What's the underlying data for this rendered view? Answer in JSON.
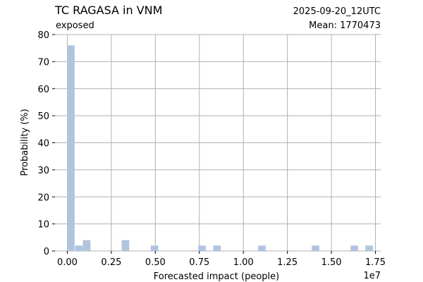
{
  "header": {
    "title": "TC RAGASA in VNM",
    "subtitle": "exposed",
    "timestamp": "2025-09-20_12UTC",
    "mean_label": "Mean: 1770473"
  },
  "colors": {
    "bar": "#b0c4de",
    "timestamp": "#ff0000",
    "grid": "#b0b0b0",
    "text": "#000000"
  },
  "chart_data": {
    "type": "bar",
    "title": "TC RAGASA in VNM",
    "subtitle": "exposed",
    "xlabel": "Forecasted impact (people)",
    "ylabel": "Probability (%)",
    "x_offset_label": "1e7",
    "xlim": [
      -0.07,
      1.78
    ],
    "ylim": [
      0,
      80
    ],
    "x_unit_multiplier": 10000000,
    "xticks": [
      0,
      0.25,
      0.5,
      0.75,
      1.0,
      1.25,
      1.5,
      1.75
    ],
    "xtick_labels": [
      "0.00",
      "0.25",
      "0.50",
      "0.75",
      "1.00",
      "1.25",
      "1.50",
      "1.75"
    ],
    "yticks": [
      0,
      10,
      20,
      30,
      40,
      50,
      60,
      70,
      80
    ],
    "ytick_labels": [
      "0",
      "10",
      "20",
      "30",
      "40",
      "50",
      "60",
      "70",
      "80"
    ],
    "grid": true,
    "bar_width": 0.043,
    "bars": [
      {
        "x": 0.02,
        "value": 76
      },
      {
        "x": 0.066,
        "value": 2
      },
      {
        "x": 0.11,
        "value": 4
      },
      {
        "x": 0.33,
        "value": 4
      },
      {
        "x": 0.495,
        "value": 2
      },
      {
        "x": 0.765,
        "value": 2
      },
      {
        "x": 0.85,
        "value": 2
      },
      {
        "x": 1.105,
        "value": 2
      },
      {
        "x": 1.41,
        "value": 2
      },
      {
        "x": 1.63,
        "value": 2
      },
      {
        "x": 1.715,
        "value": 2
      }
    ]
  }
}
